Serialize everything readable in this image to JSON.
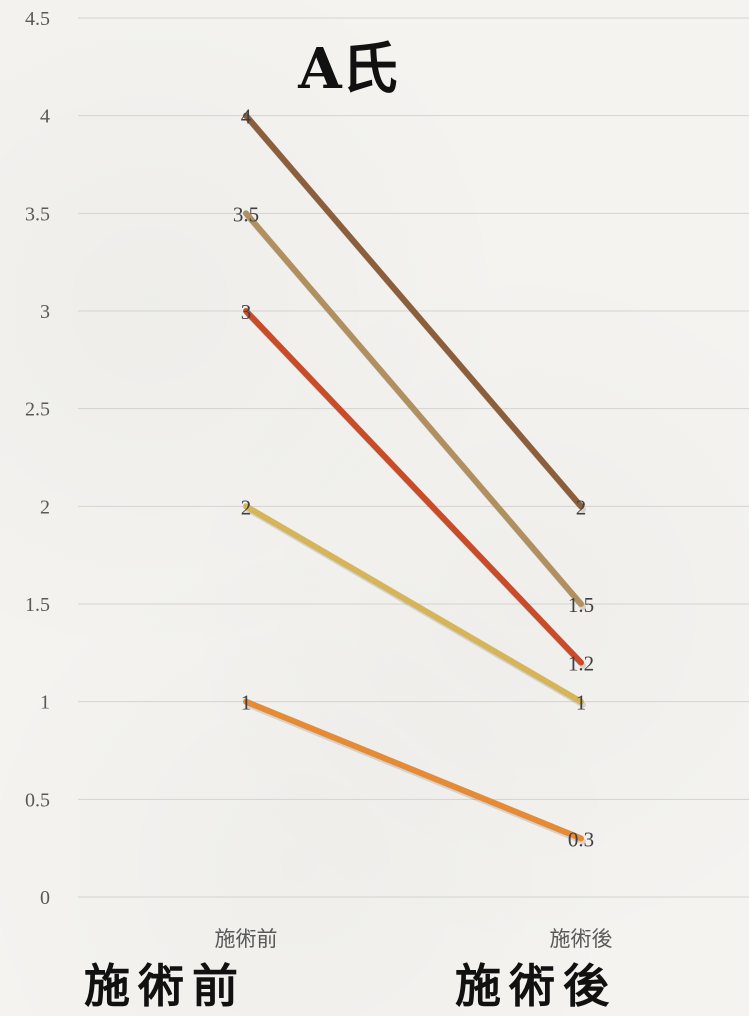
{
  "chart_data": {
    "type": "line",
    "title": "A氏",
    "categories": [
      "施術前",
      "施術後"
    ],
    "series": [
      {
        "values": [
          4,
          2
        ],
        "labels": [
          "4",
          "2"
        ],
        "color": "#8b5e3c"
      },
      {
        "values": [
          3.5,
          1.5
        ],
        "labels": [
          "3.5",
          "1.5"
        ],
        "color": "#b09060"
      },
      {
        "values": [
          3,
          1.2
        ],
        "labels": [
          "3",
          "1.2"
        ],
        "color": "#c84b2a"
      },
      {
        "values": [
          2,
          1
        ],
        "labels": [
          "2",
          "1"
        ],
        "color": "#d6b55a"
      },
      {
        "values": [
          1,
          0.3
        ],
        "labels": [
          "1",
          "0.3"
        ],
        "color": "#e58a35"
      }
    ],
    "yticks": [
      "0",
      "0.5",
      "1",
      "1.5",
      "2",
      "2.5",
      "3",
      "3.5",
      "4",
      "4.5"
    ],
    "ylim": [
      0,
      4.5
    ],
    "grid": true,
    "legend": "none"
  },
  "caption": {
    "left": "施術前",
    "right": "施術後"
  }
}
